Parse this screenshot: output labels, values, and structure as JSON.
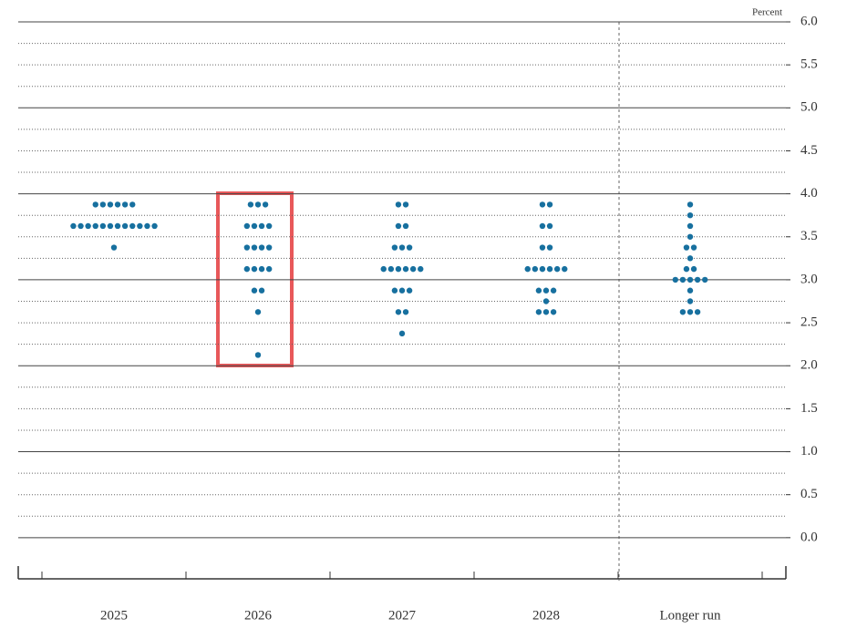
{
  "chart_data": {
    "type": "dot",
    "y_label": "Percent",
    "categories": [
      "2025",
      "2026",
      "2027",
      "2028",
      "Longer run"
    ],
    "values": [
      [
        3.875,
        3.875,
        3.875,
        3.875,
        3.875,
        3.875,
        3.625,
        3.625,
        3.625,
        3.625,
        3.625,
        3.625,
        3.625,
        3.625,
        3.625,
        3.625,
        3.625,
        3.625,
        3.375
      ],
      [
        3.875,
        3.875,
        3.875,
        3.625,
        3.625,
        3.625,
        3.625,
        3.375,
        3.375,
        3.375,
        3.375,
        3.125,
        3.125,
        3.125,
        3.125,
        2.875,
        2.875,
        2.625,
        2.125
      ],
      [
        3.875,
        3.875,
        3.625,
        3.625,
        3.375,
        3.375,
        3.375,
        3.125,
        3.125,
        3.125,
        3.125,
        3.125,
        3.125,
        2.875,
        2.875,
        2.875,
        2.625,
        2.625,
        2.375
      ],
      [
        3.875,
        3.875,
        3.625,
        3.625,
        3.375,
        3.375,
        3.125,
        3.125,
        3.125,
        3.125,
        3.125,
        3.125,
        2.875,
        2.875,
        2.875,
        2.75,
        2.625,
        2.625,
        2.625
      ],
      [
        3.875,
        3.75,
        3.625,
        3.5,
        3.375,
        3.375,
        3.25,
        3.125,
        3.125,
        3.0,
        3.0,
        3.0,
        3.0,
        3.0,
        2.875,
        2.75,
        2.625,
        2.625,
        2.625
      ]
    ],
    "color": "#17709f",
    "ylim": [
      -0.5,
      6.0
    ],
    "yticks": [
      {
        "value": 0,
        "label": "0.0"
      },
      {
        "value": 0.5,
        "label": "0.5"
      },
      {
        "value": 1,
        "label": "1.0"
      },
      {
        "value": 1.5,
        "label": "1.5"
      },
      {
        "value": 2,
        "label": "2.0"
      },
      {
        "value": 2.5,
        "label": "2.5"
      },
      {
        "value": 3,
        "label": "3.0"
      },
      {
        "value": 3.5,
        "label": "3.5"
      },
      {
        "value": 4,
        "label": "4.0"
      },
      {
        "value": 4.5,
        "label": "4.5"
      },
      {
        "value": 5,
        "label": "5.0"
      },
      {
        "value": 5.5,
        "label": "5.5"
      },
      {
        "value": 6,
        "label": "6.0"
      }
    ],
    "grid": true
  }
}
